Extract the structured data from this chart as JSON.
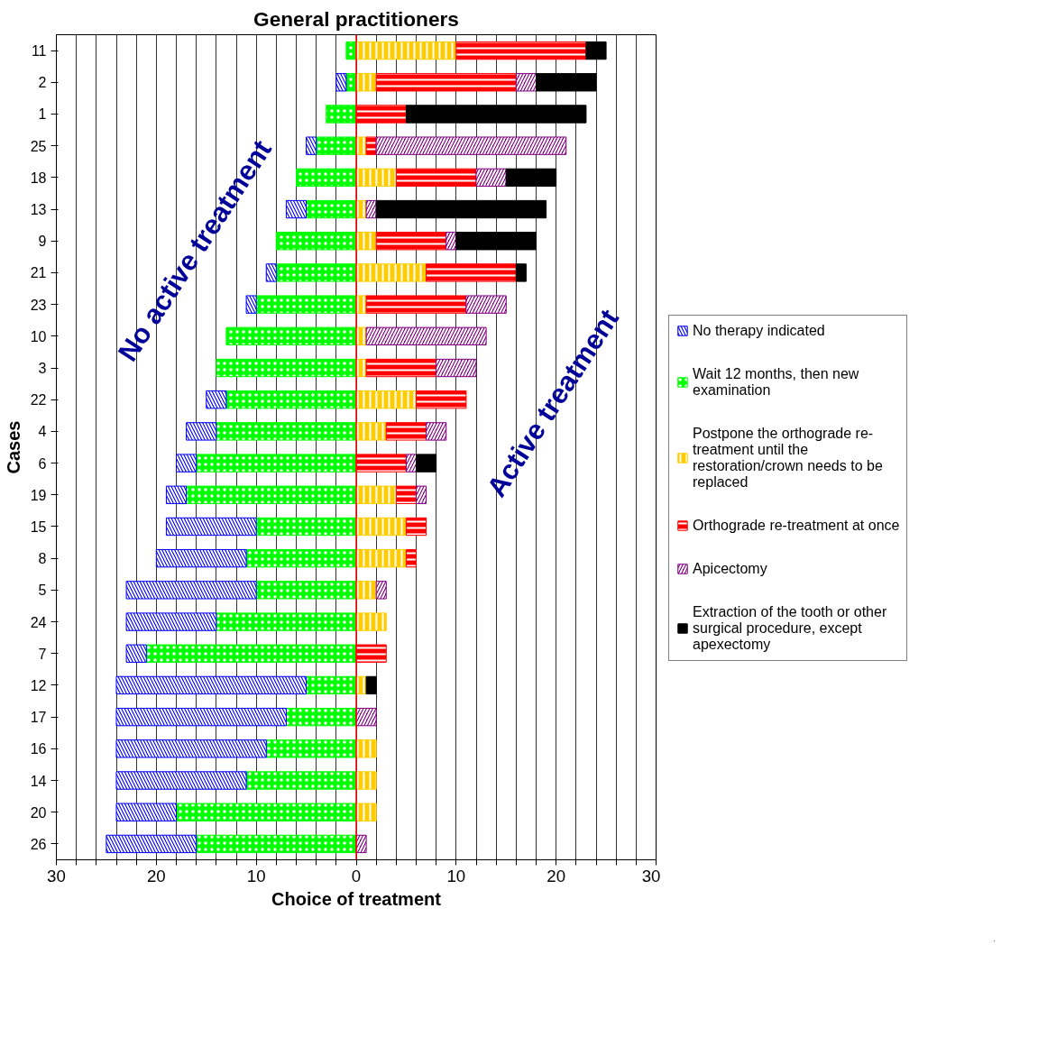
{
  "chart_data": {
    "type": "bar",
    "orientation": "horizontal",
    "stacked": true,
    "title": "General practitioners",
    "xlabel": "Choice of treatment",
    "ylabel": "Cases",
    "categories": [
      "11",
      "2",
      "1",
      "25",
      "18",
      "13",
      "9",
      "21",
      "23",
      "10",
      "3",
      "22",
      "4",
      "6",
      "19",
      "15",
      "8",
      "5",
      "24",
      "7",
      "12",
      "17",
      "16",
      "14",
      "20",
      "26"
    ],
    "series": [
      {
        "name": "Wait 12 months, then new examination",
        "color": "#00ff00",
        "values": [
          -1,
          -1,
          -3,
          -4,
          -6,
          -5,
          -8,
          -8,
          -10,
          -13,
          -14,
          -13,
          -14,
          -16,
          -17,
          -10,
          -11,
          -10,
          -14,
          -21,
          -5,
          -7,
          -9,
          -11,
          -18,
          -16
        ]
      },
      {
        "name": "No therapy indicated",
        "color": "#0000ff",
        "values": [
          0,
          -1,
          0,
          -1,
          0,
          -2,
          0,
          -1,
          -1,
          0,
          0,
          -2,
          -3,
          -2,
          -2,
          -9,
          -9,
          -13,
          -9,
          -2,
          -19,
          -17,
          -15,
          -13,
          -6,
          -9
        ]
      },
      {
        "name": "Postpone the orthograde re-treatment until the restoration/crown needs to be replaced",
        "color": "#ffcc00",
        "values": [
          10,
          2,
          0,
          1,
          4,
          1,
          2,
          7,
          1,
          1,
          1,
          6,
          3,
          0,
          4,
          5,
          5,
          2,
          3,
          0,
          1,
          0,
          2,
          2,
          2,
          0
        ]
      },
      {
        "name": "Orthograde re-treatment at once",
        "color": "#ff0000",
        "values": [
          13,
          14,
          5,
          1,
          8,
          0,
          7,
          9,
          10,
          0,
          7,
          5,
          4,
          5,
          2,
          2,
          1,
          0,
          0,
          3,
          0,
          0,
          0,
          0,
          0,
          0
        ]
      },
      {
        "name": "Apicectomy",
        "color": "#800080",
        "values": [
          0,
          2,
          0,
          19,
          3,
          1,
          1,
          0,
          4,
          12,
          4,
          0,
          2,
          1,
          1,
          0,
          0,
          1,
          0,
          0,
          0,
          2,
          0,
          0,
          0,
          1
        ]
      },
      {
        "name": "Extraction of the tooth or other surgical procedure, except apexectomy",
        "color": "#000000",
        "values": [
          2,
          6,
          18,
          0,
          5,
          17,
          8,
          1,
          0,
          0,
          0,
          0,
          0,
          2,
          0,
          0,
          0,
          0,
          0,
          0,
          1,
          0,
          0,
          0,
          0,
          0
        ]
      }
    ],
    "xlim": [
      -30,
      30
    ],
    "xticks": [
      {
        "value": -30,
        "label": "30"
      },
      {
        "value": -28,
        "label": null
      },
      {
        "value": -26,
        "label": null
      },
      {
        "value": -24,
        "label": null
      },
      {
        "value": -22,
        "label": null
      },
      {
        "value": -20,
        "label": "20"
      },
      {
        "value": -18,
        "label": null
      },
      {
        "value": -16,
        "label": null
      },
      {
        "value": -14,
        "label": null
      },
      {
        "value": -12,
        "label": null
      },
      {
        "value": -10,
        "label": "10"
      },
      {
        "value": -8,
        "label": null
      },
      {
        "value": -6,
        "label": null
      },
      {
        "value": -4,
        "label": null
      },
      {
        "value": -2,
        "label": null
      },
      0,
      {
        "value": 2,
        "label": null
      },
      {
        "value": 4,
        "label": null
      },
      {
        "value": 6,
        "label": null
      },
      {
        "value": 8,
        "label": null
      },
      {
        "value": 10,
        "label": "10"
      },
      {
        "value": 12,
        "label": null
      },
      {
        "value": 14,
        "label": null
      },
      {
        "value": 16,
        "label": null
      },
      {
        "value": 18,
        "label": null
      },
      {
        "value": 20,
        "label": "20"
      },
      {
        "value": 22,
        "label": null
      },
      {
        "value": 24,
        "label": null
      },
      {
        "value": 26,
        "label": null
      },
      {
        "value": 28,
        "label": null
      },
      {
        "value": 30,
        "label": "30"
      }
    ],
    "ref_lines": [
      {
        "axis": "x",
        "value": 0,
        "color": "#ff0000"
      }
    ],
    "annotations": [
      "No active treatment",
      "Active treatment"
    ],
    "grid": "x",
    "legend": "right"
  }
}
